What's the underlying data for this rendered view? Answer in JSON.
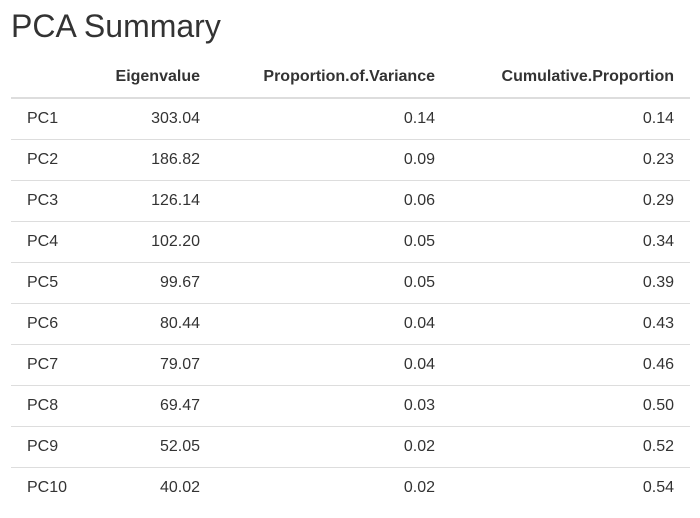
{
  "page": {
    "title": "PCA Summary"
  },
  "table": {
    "columns": [
      "",
      "Eigenvalue",
      "Proportion.of.Variance",
      "Cumulative.Proportion"
    ],
    "rows": [
      {
        "label": "PC1",
        "eigenvalue": "303.04",
        "proportion": "0.14",
        "cumulative": "0.14"
      },
      {
        "label": "PC2",
        "eigenvalue": "186.82",
        "proportion": "0.09",
        "cumulative": "0.23"
      },
      {
        "label": "PC3",
        "eigenvalue": "126.14",
        "proportion": "0.06",
        "cumulative": "0.29"
      },
      {
        "label": "PC4",
        "eigenvalue": "102.20",
        "proportion": "0.05",
        "cumulative": "0.34"
      },
      {
        "label": "PC5",
        "eigenvalue": "99.67",
        "proportion": "0.05",
        "cumulative": "0.39"
      },
      {
        "label": "PC6",
        "eigenvalue": "80.44",
        "proportion": "0.04",
        "cumulative": "0.43"
      },
      {
        "label": "PC7",
        "eigenvalue": "79.07",
        "proportion": "0.04",
        "cumulative": "0.46"
      },
      {
        "label": "PC8",
        "eigenvalue": "69.47",
        "proportion": "0.03",
        "cumulative": "0.50"
      },
      {
        "label": "PC9",
        "eigenvalue": "52.05",
        "proportion": "0.02",
        "cumulative": "0.52"
      },
      {
        "label": "PC10",
        "eigenvalue": "40.02",
        "proportion": "0.02",
        "cumulative": "0.54"
      }
    ]
  },
  "colors": {
    "text": "#333333",
    "border": "#dddddd",
    "background": "#ffffff"
  }
}
